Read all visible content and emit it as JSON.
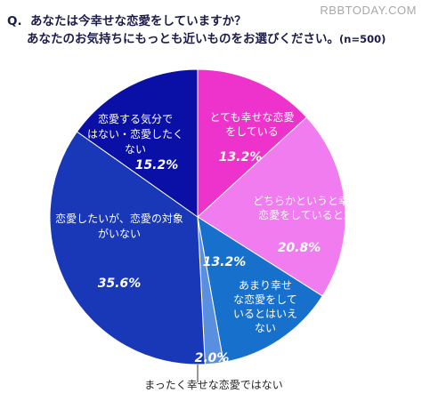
{
  "watermark": "RBBTODAY.COM",
  "question": {
    "prefix": "Q.",
    "line1": "あなたは今幸せな恋愛をしていますか？",
    "line2": "あなたのお気持ちにもっとも近いものをお選びください。",
    "sample": "(n=500)"
  },
  "chart_data": {
    "type": "pie",
    "title": "あなたは今幸せな恋愛をしていますか？",
    "sample_size": 500,
    "slices": [
      {
        "label": "とても幸せな恋愛をしている",
        "label_lines": [
          "とても幸せな恋愛",
          "をしている"
        ],
        "value": 13.2,
        "value_label": "13.2%",
        "color": "#ee33cc"
      },
      {
        "label": "どちらかというと幸せな恋愛をしていると思う",
        "label_lines": [
          "どちらかというと幸せな",
          "恋愛をしていると思う"
        ],
        "value": 20.8,
        "value_label": "20.8%",
        "color": "#f07cf0"
      },
      {
        "label": "あまり幸せな恋愛をしているとはいえない",
        "label_lines": [
          "あまり幸せ",
          "な恋愛をして",
          "いるとはいえ",
          "ない"
        ],
        "value": 13.2,
        "value_label": "13.2%",
        "color": "#1670cc"
      },
      {
        "label": "まったく幸せな恋愛ではない",
        "label_lines": [
          "まったく幸せな恋愛ではない"
        ],
        "value": 2.0,
        "value_label": "2.0%",
        "color": "#5a8fe0"
      },
      {
        "label": "恋愛したいが、恋愛の対象がいない",
        "label_lines": [
          "恋愛したいが、恋愛の対象",
          "がいない"
        ],
        "value": 35.6,
        "value_label": "35.6%",
        "color": "#1838b8"
      },
      {
        "label": "恋愛する気分ではない・恋愛したくない",
        "label_lines": [
          "恋愛する気分で",
          "はない・恋愛したく",
          "ない"
        ],
        "value": 15.2,
        "value_label": "15.2%",
        "color": "#0a0fa6"
      }
    ]
  }
}
